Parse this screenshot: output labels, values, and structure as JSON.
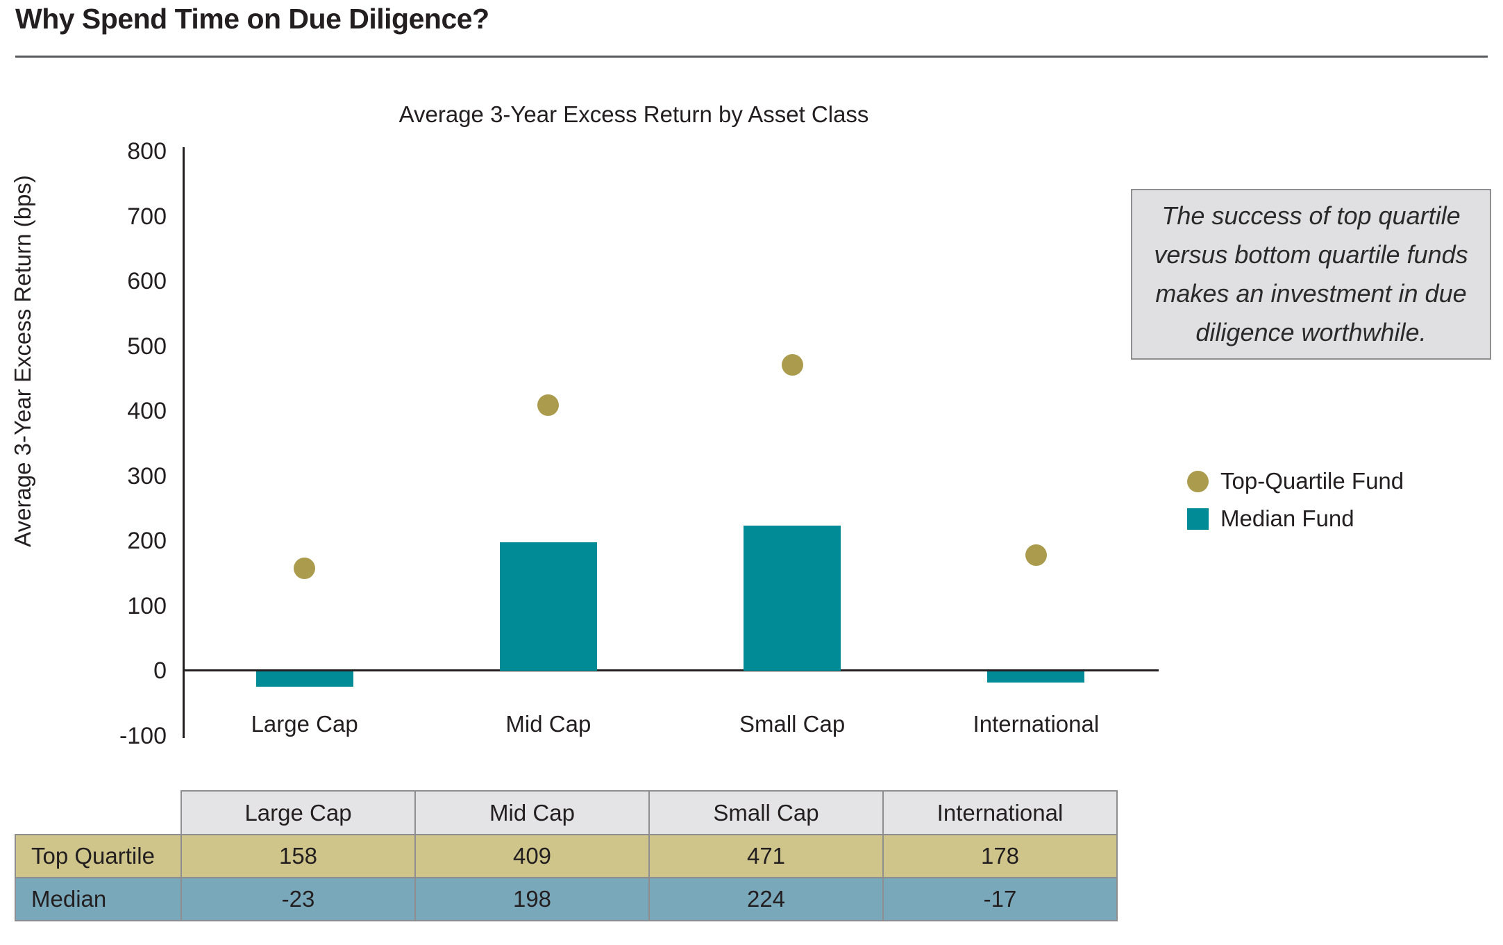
{
  "page": {
    "title": "Why Spend Time on Due Diligence?"
  },
  "annotation": {
    "text": "The success of top quartile versus bottom quartile funds makes an investment in due diligence worthwhile."
  },
  "chart_data": {
    "type": "combo",
    "title": "Average 3-Year Excess Return by Asset Class",
    "ylabel": "Average 3-Year Excess Return (bps)",
    "categories": [
      "Large Cap",
      "Mid Cap",
      "Small Cap",
      "International"
    ],
    "series": [
      {
        "name": "Top-Quartile Fund",
        "type": "scatter",
        "color": "#ab9b4d",
        "values": [
          158,
          409,
          471,
          178
        ]
      },
      {
        "name": "Median Fund",
        "type": "bar",
        "color": "#008b96",
        "values": [
          -23,
          198,
          224,
          -17
        ]
      }
    ],
    "ylim": [
      -100,
      800
    ],
    "yticks": [
      800,
      700,
      600,
      500,
      400,
      300,
      200,
      100,
      0,
      -100
    ],
    "grid": false,
    "legend_position": "right"
  },
  "table": {
    "columns": [
      "Large Cap",
      "Mid Cap",
      "Small Cap",
      "International"
    ],
    "rows": [
      {
        "label": "Top Quartile",
        "values": [
          "158",
          "409",
          "471",
          "178"
        ],
        "color": "#cfc489"
      },
      {
        "label": "Median",
        "values": [
          "-23",
          "198",
          "224",
          "-17"
        ],
        "color": "#7aa8bb"
      }
    ],
    "header_bg": "#e4e4e6"
  },
  "colors": {
    "bar_teal": "#008b96",
    "dot_gold": "#ab9b4d",
    "text": "#231f20",
    "rule": "#58595b",
    "annotation_bg": "#e0e0e2",
    "annotation_border": "#8f8f8f",
    "table_border": "#8e8e90"
  }
}
